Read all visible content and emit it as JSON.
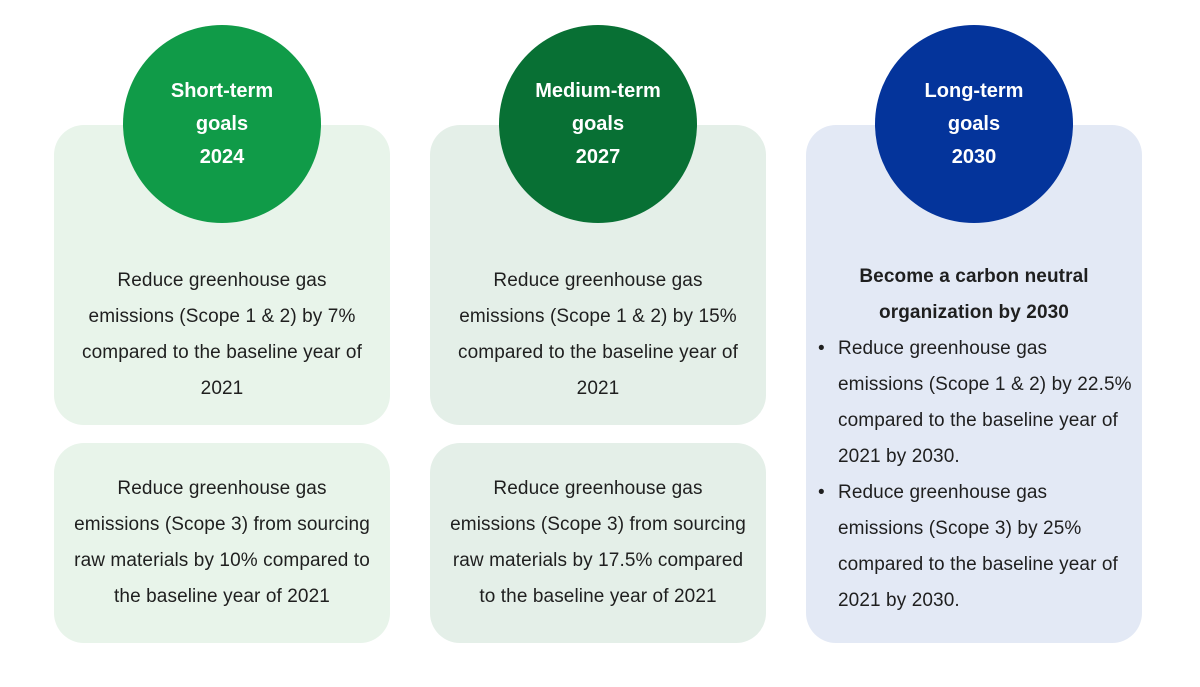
{
  "columns": [
    {
      "id": "short-term",
      "circle": {
        "line1": "Short-term",
        "line2": "goals",
        "line3": "2024",
        "color": "#109b48"
      },
      "card1": "Reduce greenhouse gas emissions (Scope 1 & 2) by 7% compared to the baseline year of 2021",
      "card2": "Reduce greenhouse gas emissions (Scope 3) from sourcing raw materials by 10% compared to the baseline year of 2021"
    },
    {
      "id": "medium-term",
      "circle": {
        "line1": "Medium-term",
        "line2": "goals",
        "line3": "2027",
        "color": "#087034"
      },
      "card1": "Reduce greenhouse gas emissions (Scope 1 & 2) by 15% compared to the baseline year of 2021",
      "card2": "Reduce greenhouse gas emissions (Scope 3) from sourcing raw materials by 17.5% compared to the baseline year of 2021"
    },
    {
      "id": "long-term",
      "circle": {
        "line1": "Long-term",
        "line2": "goals",
        "line3": "2030",
        "color": "#04349b"
      },
      "heading": "Become a carbon neutral organization by 2030",
      "bullets": [
        "Reduce greenhouse gas emissions (Scope 1 & 2) by 22.5% compared to the baseline year of 2021 by 2030.",
        "Reduce greenhouse gas emissions (Scope 3) by 25% compared to the baseline year of 2021 by 2030."
      ]
    }
  ]
}
